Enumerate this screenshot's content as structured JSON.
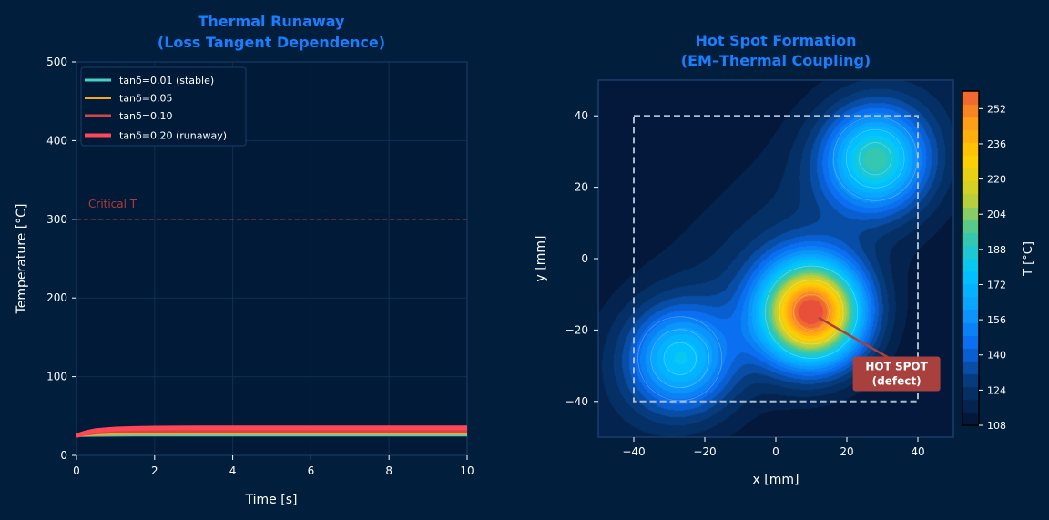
{
  "chart_data": [
    {
      "type": "line",
      "title": "Thermal Runaway\n(Loss Tangent Dependence)",
      "title_lines": [
        "Thermal Runaway",
        "(Loss Tangent Dependence)"
      ],
      "xlabel": "Time [s]",
      "ylabel": "Temperature [°C]",
      "xlim": [
        0,
        10
      ],
      "ylim": [
        0,
        500
      ],
      "xticks": [
        "0",
        "2",
        "4",
        "6",
        "8",
        "10"
      ],
      "yticks": [
        "0",
        "100",
        "200",
        "300",
        "400",
        "500"
      ],
      "grid": true,
      "legend_position": "top-left",
      "x": [
        0,
        0.25,
        0.5,
        1,
        1.5,
        2,
        3,
        4,
        5,
        6,
        7,
        8,
        9,
        10
      ],
      "series": [
        {
          "name": "tanδ=0.01 (stable)",
          "color": "#4ecdc4",
          "values": [
            25,
            25.3,
            25.5,
            25.6,
            25.7,
            25.7,
            25.7,
            25.7,
            25.7,
            25.7,
            25.7,
            25.7,
            25.7,
            25.7
          ]
        },
        {
          "name": "tanδ=0.05",
          "color": "#f5a623",
          "values": [
            25,
            26,
            26.8,
            27.4,
            27.6,
            27.7,
            27.8,
            27.8,
            27.8,
            27.8,
            27.8,
            27.8,
            27.8,
            27.8
          ]
        },
        {
          "name": "tanδ=0.10",
          "color": "#d64545",
          "values": [
            25,
            27,
            28.5,
            29.8,
            30.3,
            30.5,
            30.6,
            30.6,
            30.6,
            30.6,
            30.6,
            30.6,
            30.6,
            30.6
          ]
        },
        {
          "name": "tanδ=0.20 (runaway)",
          "color": "#ff4757",
          "values": [
            25,
            29,
            31.5,
            33.5,
            34.3,
            34.7,
            35,
            35,
            35,
            35,
            35,
            35,
            35,
            35
          ]
        }
      ],
      "reference_line": {
        "y": 300,
        "label": "Critical T",
        "color": "#b03a3a"
      }
    },
    {
      "type": "heatmap",
      "title_lines": [
        "Hot Spot Formation",
        "(EM–Thermal Coupling)"
      ],
      "xlabel": "x [mm]",
      "ylabel": "y [mm]",
      "xlim": [
        -50,
        50
      ],
      "ylim": [
        -50,
        50
      ],
      "xticks": [
        "−40",
        "−20",
        "0",
        "20",
        "40"
      ],
      "yticks": [
        "40",
        "20",
        "0",
        "−20",
        "−40"
      ],
      "base_temperature": 108,
      "sources": [
        {
          "x": 10,
          "y": -15,
          "peak": 152,
          "sigma": 10
        },
        {
          "x": 28,
          "y": 28,
          "peak": 75,
          "sigma": 10
        },
        {
          "x": -27,
          "y": -28,
          "peak": 60,
          "sigma": 10
        }
      ],
      "region_box": {
        "x": [
          -40,
          40
        ],
        "y": [
          -40,
          40
        ]
      },
      "annotation": {
        "lines": [
          "HOT SPOT",
          "(defect)"
        ],
        "point": [
          10,
          -15
        ],
        "text_at": [
          34,
          -31
        ],
        "color": "#a8403e"
      },
      "colorbar": {
        "label": "T [°C]",
        "range": [
          108,
          260
        ],
        "ticks": [
          "108",
          "124",
          "140",
          "156",
          "172",
          "188",
          "204",
          "220",
          "236",
          "252"
        ],
        "colors": [
          "#03183a",
          "#063a78",
          "#0a6cf0",
          "#0aa0ff",
          "#00c8ff",
          "#3cc8a0",
          "#c8d030",
          "#ffd000",
          "#ff9c1a",
          "#e8503c"
        ]
      }
    }
  ]
}
